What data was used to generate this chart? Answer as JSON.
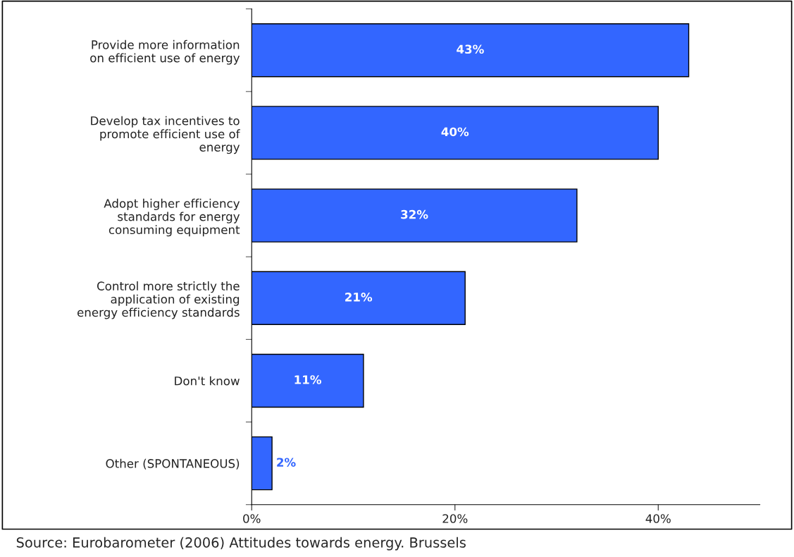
{
  "chart_data": {
    "type": "bar",
    "orientation": "horizontal",
    "categories": [
      "Provide more information\non efficient use of energy",
      "Develop tax incentives to\npromote efficient use of\nenergy",
      "Adopt higher efficiency\nstandards for energy\nconsuming equipment",
      "Control more strictly the\napplication of existing\nenergy efficiency standards",
      "Don't know",
      "Other (SPONTANEOUS)"
    ],
    "values": [
      43,
      40,
      32,
      21,
      11,
      2
    ],
    "value_labels": [
      "43%",
      "40%",
      "32%",
      "21%",
      "11%",
      "2%"
    ],
    "color": "#3366ff",
    "xlim": [
      0,
      50
    ],
    "xticks": [
      {
        "value": 0,
        "label": "0%"
      },
      {
        "value": 20,
        "label": "20%"
      },
      {
        "value": 40,
        "label": "40%"
      }
    ],
    "grid": false,
    "legend": false,
    "annotations": [
      "Source: Eurobarometer (2006) Attitudes towards energy. Brussels"
    ]
  }
}
